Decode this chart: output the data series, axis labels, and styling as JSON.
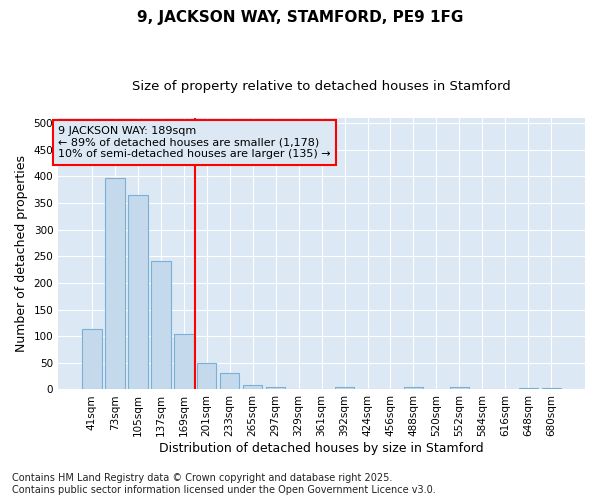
{
  "title": "9, JACKSON WAY, STAMFORD, PE9 1FG",
  "subtitle": "Size of property relative to detached houses in Stamford",
  "xlabel": "Distribution of detached houses by size in Stamford",
  "ylabel": "Number of detached properties",
  "categories": [
    "41sqm",
    "73sqm",
    "105sqm",
    "137sqm",
    "169sqm",
    "201sqm",
    "233sqm",
    "265sqm",
    "297sqm",
    "329sqm",
    "361sqm",
    "392sqm",
    "424sqm",
    "456sqm",
    "488sqm",
    "520sqm",
    "552sqm",
    "584sqm",
    "616sqm",
    "648sqm",
    "680sqm"
  ],
  "values": [
    113,
    397,
    365,
    242,
    105,
    50,
    30,
    8,
    5,
    0,
    0,
    5,
    0,
    0,
    5,
    0,
    5,
    0,
    0,
    2,
    2
  ],
  "bar_color": "#c5d9ed",
  "bar_edge_color": "#7bafd4",
  "vline_x": 4.5,
  "vline_color": "red",
  "annotation_text": "9 JACKSON WAY: 189sqm\n← 89% of detached houses are smaller (1,178)\n10% of semi-detached houses are larger (135) →",
  "annotation_box_color": "red",
  "figure_bg_color": "#ffffff",
  "axes_bg_color": "#dce9f5",
  "grid_color": "#ffffff",
  "ylim": [
    0,
    510
  ],
  "yticks": [
    0,
    50,
    100,
    150,
    200,
    250,
    300,
    350,
    400,
    450,
    500
  ],
  "footer": "Contains HM Land Registry data © Crown copyright and database right 2025.\nContains public sector information licensed under the Open Government Licence v3.0.",
  "title_fontsize": 11,
  "subtitle_fontsize": 9.5,
  "axis_label_fontsize": 9,
  "tick_fontsize": 7.5,
  "annotation_fontsize": 8,
  "footer_fontsize": 7
}
